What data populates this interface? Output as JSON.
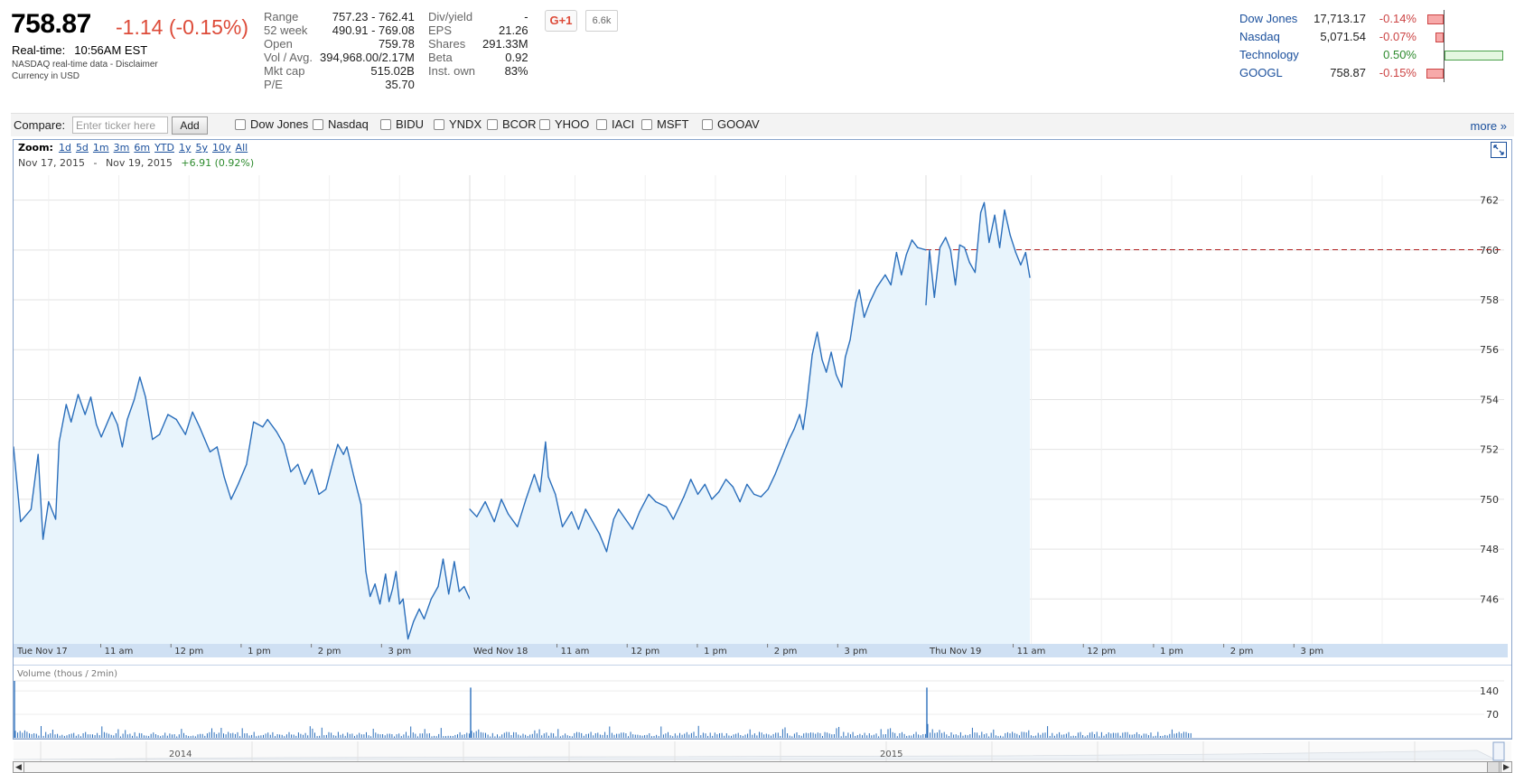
{
  "quote": {
    "price": "758.87",
    "change": "-1.14 (-0.15%)",
    "realtime_label": "Real-time:",
    "realtime_time": "10:56AM EST",
    "source_note": "NASDAQ real-time data - Disclaimer",
    "currency_note": "Currency in USD"
  },
  "stats_left": [
    {
      "label": "Range",
      "value": "757.23 - 762.41"
    },
    {
      "label": "52 week",
      "value": "490.91 - 769.08"
    },
    {
      "label": "Open",
      "value": "759.78"
    },
    {
      "label": "Vol / Avg.",
      "value": "394,968.00/2.17M"
    },
    {
      "label": "Mkt cap",
      "value": "515.02B"
    },
    {
      "label": "P/E",
      "value": "35.70"
    }
  ],
  "stats_right": [
    {
      "label": "Div/yield",
      "value": "-"
    },
    {
      "label": "EPS",
      "value": "21.26"
    },
    {
      "label": "Shares",
      "value": "291.33M"
    },
    {
      "label": "Beta",
      "value": "0.92"
    },
    {
      "label": "Inst. own",
      "value": "83%"
    }
  ],
  "social": {
    "plus_label": "G+1",
    "count": "6.6k"
  },
  "market": [
    {
      "name": "Dow Jones",
      "value": "17,713.17",
      "change": "-0.14%",
      "pct": -0.14,
      "color": "#cc4444"
    },
    {
      "name": "Nasdaq",
      "value": "5,071.54",
      "change": "-0.07%",
      "pct": -0.07,
      "color": "#cc4444"
    },
    {
      "name": "Technology",
      "value": "",
      "change": "0.50%",
      "pct": 0.5,
      "color": "#2e8b2e"
    },
    {
      "name": "GOOGL",
      "value": "758.87",
      "change": "-0.15%",
      "pct": -0.15,
      "color": "#cc4444"
    }
  ],
  "compare": {
    "label": "Compare:",
    "placeholder": "Enter ticker here",
    "add_label": "Add",
    "tickers": [
      "Dow Jones",
      "Nasdaq",
      "BIDU",
      "YNDX",
      "BCOR",
      "YHOO",
      "IACI",
      "MSFT",
      "GOOAV"
    ],
    "more_label": "more »"
  },
  "zoom": {
    "label": "Zoom:",
    "options": [
      "1d",
      "5d",
      "1m",
      "3m",
      "6m",
      "YTD",
      "1y",
      "5y",
      "10y",
      "All"
    ],
    "range_start": "Nov 17, 2015",
    "range_sep": "-",
    "range_end": "Nov 19, 2015",
    "range_change": "+6.91 (0.92%)"
  },
  "volume_label": "Volume (thous / 2min)",
  "nav_years": [
    "2014",
    "2015"
  ],
  "chart_data": {
    "type": "line",
    "title": "",
    "y_ticks": [
      746,
      748,
      750,
      752,
      754,
      756,
      758,
      760,
      762
    ],
    "ylim": [
      744.2,
      763.0
    ],
    "previous_close": 760.01,
    "x_ticks": [
      "Tue Nov 17",
      "11 am",
      "12 pm",
      "1 pm",
      "2 pm",
      "3 pm",
      "Wed Nov 18",
      "11 am",
      "12 pm",
      "1 pm",
      "2 pm",
      "3 pm",
      "Thu Nov 19",
      "11 am",
      "12 pm",
      "1 pm",
      "2 pm",
      "3 pm"
    ],
    "sessions": [
      {
        "day": "Tue Nov 17",
        "points": [
          [
            9.5,
            752.1
          ],
          [
            9.6,
            749.1
          ],
          [
            9.75,
            749.6
          ],
          [
            9.85,
            751.8
          ],
          [
            9.92,
            748.4
          ],
          [
            10.0,
            749.9
          ],
          [
            10.1,
            749.2
          ],
          [
            10.15,
            752.3
          ],
          [
            10.25,
            753.8
          ],
          [
            10.32,
            753.1
          ],
          [
            10.42,
            754.2
          ],
          [
            10.52,
            753.4
          ],
          [
            10.6,
            754.1
          ],
          [
            10.68,
            753.0
          ],
          [
            10.75,
            752.5
          ],
          [
            10.9,
            753.5
          ],
          [
            10.98,
            753.0
          ],
          [
            11.05,
            752.1
          ],
          [
            11.12,
            753.2
          ],
          [
            11.22,
            754.0
          ],
          [
            11.3,
            754.9
          ],
          [
            11.38,
            754.1
          ],
          [
            11.48,
            752.4
          ],
          [
            11.58,
            752.6
          ],
          [
            11.7,
            753.4
          ],
          [
            11.82,
            753.2
          ],
          [
            11.95,
            752.6
          ],
          [
            12.05,
            753.5
          ],
          [
            12.15,
            752.9
          ],
          [
            12.3,
            751.9
          ],
          [
            12.4,
            752.1
          ],
          [
            12.5,
            750.9
          ],
          [
            12.6,
            750.0
          ],
          [
            12.7,
            750.6
          ],
          [
            12.82,
            751.4
          ],
          [
            12.92,
            753.1
          ],
          [
            13.05,
            752.9
          ],
          [
            13.12,
            753.2
          ],
          [
            13.25,
            752.7
          ],
          [
            13.35,
            752.2
          ],
          [
            13.45,
            751.1
          ],
          [
            13.55,
            751.4
          ],
          [
            13.65,
            750.6
          ],
          [
            13.75,
            751.2
          ],
          [
            13.85,
            750.2
          ],
          [
            13.95,
            750.4
          ],
          [
            14.05,
            751.5
          ],
          [
            14.12,
            752.2
          ],
          [
            14.2,
            751.8
          ],
          [
            14.25,
            752.1
          ],
          [
            14.35,
            750.9
          ],
          [
            14.45,
            749.8
          ],
          [
            14.52,
            747.1
          ],
          [
            14.58,
            746.1
          ],
          [
            14.65,
            746.6
          ],
          [
            14.72,
            745.8
          ],
          [
            14.8,
            747.0
          ],
          [
            14.85,
            745.9
          ],
          [
            14.9,
            746.4
          ],
          [
            14.95,
            747.1
          ],
          [
            15.0,
            745.8
          ],
          [
            15.05,
            746.0
          ],
          [
            15.12,
            744.4
          ],
          [
            15.2,
            745.1
          ],
          [
            15.28,
            745.6
          ],
          [
            15.35,
            745.2
          ],
          [
            15.45,
            746.0
          ],
          [
            15.55,
            746.5
          ],
          [
            15.62,
            747.6
          ],
          [
            15.7,
            746.2
          ],
          [
            15.78,
            747.5
          ],
          [
            15.85,
            746.3
          ],
          [
            15.92,
            746.5
          ],
          [
            16.0,
            746.0
          ]
        ]
      },
      {
        "day": "Wed Nov 18",
        "points": [
          [
            9.5,
            749.6
          ],
          [
            9.6,
            749.3
          ],
          [
            9.72,
            749.9
          ],
          [
            9.85,
            749.1
          ],
          [
            9.95,
            750.0
          ],
          [
            10.05,
            749.4
          ],
          [
            10.18,
            748.9
          ],
          [
            10.3,
            750.0
          ],
          [
            10.42,
            751.0
          ],
          [
            10.5,
            750.3
          ],
          [
            10.58,
            752.3
          ],
          [
            10.62,
            750.9
          ],
          [
            10.72,
            750.2
          ],
          [
            10.82,
            748.9
          ],
          [
            10.95,
            749.5
          ],
          [
            11.05,
            748.8
          ],
          [
            11.15,
            749.6
          ],
          [
            11.25,
            749.1
          ],
          [
            11.35,
            748.6
          ],
          [
            11.45,
            747.9
          ],
          [
            11.55,
            749.2
          ],
          [
            11.62,
            749.6
          ],
          [
            11.72,
            749.2
          ],
          [
            11.82,
            748.8
          ],
          [
            11.92,
            749.5
          ],
          [
            12.05,
            750.2
          ],
          [
            12.15,
            749.9
          ],
          [
            12.3,
            749.7
          ],
          [
            12.4,
            749.2
          ],
          [
            12.55,
            750.1
          ],
          [
            12.65,
            750.8
          ],
          [
            12.75,
            750.2
          ],
          [
            12.85,
            750.6
          ],
          [
            12.95,
            750.0
          ],
          [
            13.05,
            750.3
          ],
          [
            13.15,
            750.8
          ],
          [
            13.25,
            750.5
          ],
          [
            13.35,
            749.9
          ],
          [
            13.45,
            750.6
          ],
          [
            13.55,
            750.2
          ],
          [
            13.65,
            750.1
          ],
          [
            13.75,
            750.4
          ],
          [
            13.85,
            751.0
          ],
          [
            13.95,
            751.7
          ],
          [
            14.05,
            752.4
          ],
          [
            14.12,
            752.8
          ],
          [
            14.2,
            753.4
          ],
          [
            14.25,
            752.8
          ],
          [
            14.3,
            753.8
          ],
          [
            14.38,
            755.8
          ],
          [
            14.45,
            756.7
          ],
          [
            14.52,
            755.6
          ],
          [
            14.58,
            755.1
          ],
          [
            14.65,
            755.9
          ],
          [
            14.72,
            755.0
          ],
          [
            14.8,
            754.5
          ],
          [
            14.85,
            755.7
          ],
          [
            14.92,
            756.4
          ],
          [
            15.0,
            757.9
          ],
          [
            15.05,
            758.4
          ],
          [
            15.12,
            757.3
          ],
          [
            15.2,
            757.9
          ],
          [
            15.3,
            758.5
          ],
          [
            15.42,
            759.0
          ],
          [
            15.5,
            758.6
          ],
          [
            15.58,
            759.9
          ],
          [
            15.65,
            759.0
          ],
          [
            15.72,
            759.8
          ],
          [
            15.8,
            760.4
          ],
          [
            15.88,
            760.1
          ],
          [
            16.0,
            760.0
          ]
        ]
      },
      {
        "day": "Thu Nov 19",
        "points": [
          [
            9.5,
            757.8
          ],
          [
            9.55,
            760.0
          ],
          [
            9.62,
            758.1
          ],
          [
            9.7,
            760.1
          ],
          [
            9.78,
            760.5
          ],
          [
            9.85,
            760.0
          ],
          [
            9.92,
            758.6
          ],
          [
            9.98,
            760.2
          ],
          [
            10.05,
            760.1
          ],
          [
            10.12,
            759.5
          ],
          [
            10.2,
            759.1
          ],
          [
            10.28,
            761.5
          ],
          [
            10.33,
            761.9
          ],
          [
            10.4,
            760.3
          ],
          [
            10.48,
            761.4
          ],
          [
            10.55,
            760.1
          ],
          [
            10.62,
            761.6
          ],
          [
            10.7,
            760.6
          ],
          [
            10.78,
            759.9
          ],
          [
            10.85,
            759.4
          ],
          [
            10.92,
            759.9
          ],
          [
            10.98,
            758.9
          ]
        ]
      }
    ]
  },
  "volume_data": {
    "y_ticks": [
      70,
      140
    ],
    "ymax": 170,
    "spikes": [
      [
        0,
        170
      ],
      [
        1,
        150
      ],
      [
        2,
        150
      ]
    ]
  }
}
